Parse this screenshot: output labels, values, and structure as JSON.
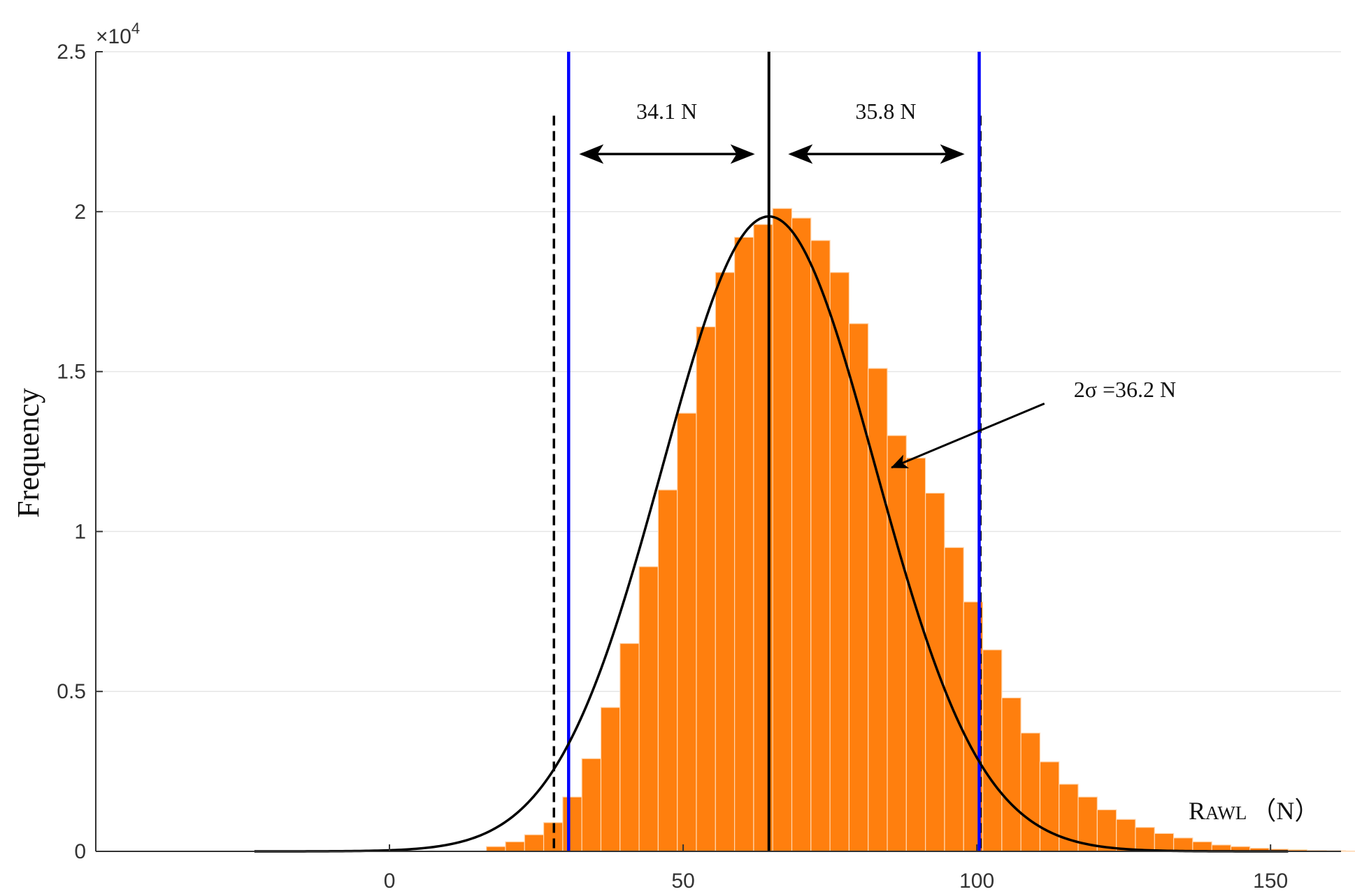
{
  "chart_data": {
    "type": "bar",
    "xlabel": "RAWL（N）",
    "xlabel_parts": {
      "main": "R",
      "sub": "AWL",
      "unit": "（N）"
    },
    "ylabel": "Frequency",
    "y_exponent": "×10",
    "y_exponent_power": "4",
    "xlim": [
      -50,
      162
    ],
    "ylim": [
      0,
      25000
    ],
    "xticks": [
      0,
      50,
      100,
      150
    ],
    "xtick_labels": [
      "0",
      "50",
      "100",
      "150"
    ],
    "yticks": [
      0,
      5000,
      10000,
      15000,
      20000,
      25000
    ],
    "ytick_labels": [
      "0",
      "0.5",
      "1",
      "1.5",
      "2",
      "2.5"
    ],
    "grid": "horizontal",
    "bin_width": 3.25,
    "bin_start": 16.5,
    "values": [
      150,
      300,
      520,
      900,
      1700,
      2900,
      4500,
      6500,
      8900,
      11300,
      13700,
      16400,
      18100,
      19200,
      19600,
      20100,
      19800,
      19100,
      18100,
      16500,
      15100,
      13000,
      12300,
      11200,
      9500,
      7800,
      6300,
      4800,
      3700,
      2800,
      2100,
      1700,
      1300,
      1000,
      750,
      560,
      420,
      300,
      200,
      150,
      100,
      70,
      50,
      30,
      20,
      10
    ],
    "normal_fit": {
      "mean": 64.6,
      "std": 18.1,
      "peak": 19850,
      "x_range": [
        -23,
        153
      ]
    },
    "vertical_lines": {
      "mean": 64.6,
      "blue": [
        30.5,
        100.4
      ],
      "dashed": [
        28.0,
        100.6
      ]
    },
    "annotations": [
      {
        "id": "left-width",
        "text": "34.1 N",
        "arrow_from": 32.7,
        "arrow_to": 61.8,
        "arrow_y": 21800,
        "text_x": 47.2,
        "text_y": 22900
      },
      {
        "id": "right-width",
        "text": "35.8 N",
        "arrow_from": 68.3,
        "arrow_to": 97.5,
        "arrow_y": 21800,
        "text_x": 84.5,
        "text_y": 22900
      },
      {
        "id": "sigma",
        "text": "2σ =36.2 N",
        "arrow_from_xy": [
          111.5,
          14000
        ],
        "arrow_to_xy": [
          85.5,
          12000
        ],
        "text_x": 116.5,
        "text_y": 14200
      }
    ],
    "colors": {
      "bars": "#ff7f0e",
      "bar_edge": "#ffd7b0",
      "fit_curve": "#000000",
      "blue_lines": "#0000ff",
      "dashed_lines": "#000000",
      "grid": "#e6e6e6",
      "axis": "#333333"
    }
  }
}
